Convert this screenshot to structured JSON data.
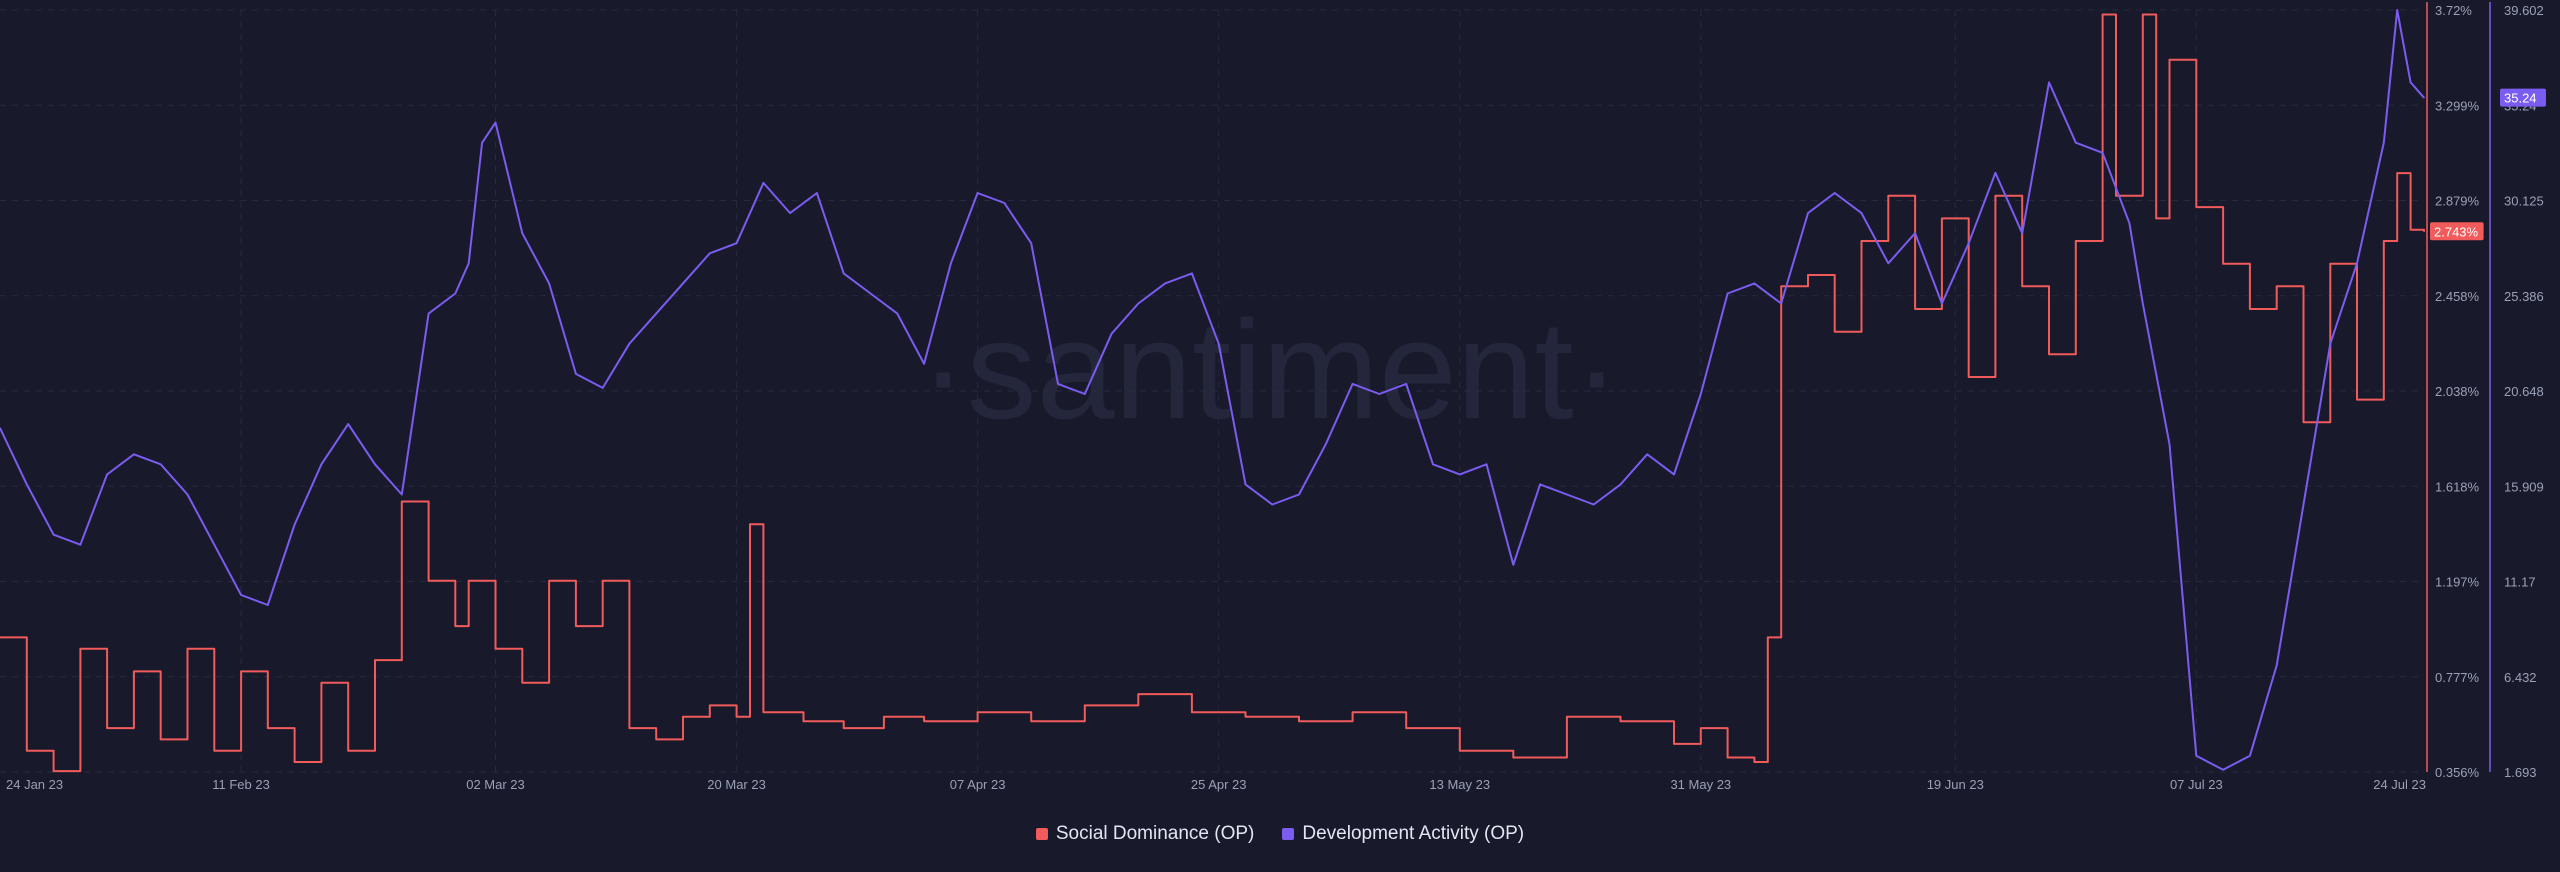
{
  "watermark": "·santiment·",
  "colors": {
    "background": "#181a2b",
    "grid": "#262a3f",
    "axis_text": "#9aa0b6",
    "social_dominance": "#f15b5b",
    "development_activity": "#7b5cf0"
  },
  "legend": [
    {
      "label": "Social Dominance (OP)",
      "color": "#f15b5b"
    },
    {
      "label": "Development Activity (OP)",
      "color": "#7b5cf0"
    }
  ],
  "chart_data": {
    "type": "line",
    "x_tick_labels": [
      "24 Jan 23",
      "11 Feb 23",
      "02 Mar 23",
      "20 Mar 23",
      "07 Apr 23",
      "25 Apr 23",
      "13 May 23",
      "31 May 23",
      "19 Jun 23",
      "07 Jul 23",
      "24 Jul 23"
    ],
    "x_range": [
      "24 Jan 23",
      "24 Jul 23"
    ],
    "grid": true,
    "legend_position": "bottom-center",
    "y_axes": [
      {
        "series": "Social Dominance (OP)",
        "position": "right-inner",
        "unit": "%",
        "ticks": [
          "3.72%",
          "3.299%",
          "2.879%",
          "2.458%",
          "2.038%",
          "1.618%",
          "1.197%",
          "0.777%",
          "0.356%"
        ],
        "range": [
          0.356,
          3.72
        ],
        "last_value_label": "2.743%"
      },
      {
        "series": "Development Activity (OP)",
        "position": "right-outer",
        "ticks": [
          "39.602",
          "35.24",
          "30.125",
          "25.386",
          "20.648",
          "15.909",
          "11.17",
          "6.432",
          "1.693"
        ],
        "range": [
          1.693,
          39.602
        ],
        "last_value_label": "35.24"
      }
    ],
    "series": [
      {
        "name": "Social Dominance (OP)",
        "axis": 0,
        "points": [
          [
            "24 Jan 23",
            0.95
          ],
          [
            "26 Jan 23",
            0.45
          ],
          [
            "28 Jan 23",
            0.36
          ],
          [
            "30 Jan 23",
            0.9
          ],
          [
            "01 Feb 23",
            0.55
          ],
          [
            "03 Feb 23",
            0.8
          ],
          [
            "05 Feb 23",
            0.5
          ],
          [
            "07 Feb 23",
            0.9
          ],
          [
            "09 Feb 23",
            0.45
          ],
          [
            "11 Feb 23",
            0.8
          ],
          [
            "13 Feb 23",
            0.55
          ],
          [
            "15 Feb 23",
            0.4
          ],
          [
            "17 Feb 23",
            0.75
          ],
          [
            "19 Feb 23",
            0.45
          ],
          [
            "21 Feb 23",
            0.85
          ],
          [
            "23 Feb 23",
            1.55
          ],
          [
            "25 Feb 23",
            1.2
          ],
          [
            "27 Feb 23",
            1.0
          ],
          [
            "28 Feb 23",
            1.2
          ],
          [
            "02 Mar 23",
            0.9
          ],
          [
            "04 Mar 23",
            0.75
          ],
          [
            "06 Mar 23",
            1.2
          ],
          [
            "08 Mar 23",
            1.0
          ],
          [
            "10 Mar 23",
            1.2
          ],
          [
            "12 Mar 23",
            0.55
          ],
          [
            "14 Mar 23",
            0.5
          ],
          [
            "16 Mar 23",
            0.6
          ],
          [
            "18 Mar 23",
            0.65
          ],
          [
            "20 Mar 23",
            0.6
          ],
          [
            "21 Mar 23",
            1.45
          ],
          [
            "22 Mar 23",
            0.62
          ],
          [
            "25 Mar 23",
            0.58
          ],
          [
            "28 Mar 23",
            0.55
          ],
          [
            "31 Mar 23",
            0.6
          ],
          [
            "03 Apr 23",
            0.58
          ],
          [
            "07 Apr 23",
            0.62
          ],
          [
            "11 Apr 23",
            0.58
          ],
          [
            "15 Apr 23",
            0.65
          ],
          [
            "19 Apr 23",
            0.7
          ],
          [
            "23 Apr 23",
            0.62
          ],
          [
            "27 Apr 23",
            0.6
          ],
          [
            "01 May 23",
            0.58
          ],
          [
            "05 May 23",
            0.62
          ],
          [
            "09 May 23",
            0.55
          ],
          [
            "13 May 23",
            0.45
          ],
          [
            "17 May 23",
            0.42
          ],
          [
            "21 May 23",
            0.6
          ],
          [
            "25 May 23",
            0.58
          ],
          [
            "29 May 23",
            0.48
          ],
          [
            "31 May 23",
            0.55
          ],
          [
            "02 Jun 23",
            0.42
          ],
          [
            "04 Jun 23",
            0.4
          ],
          [
            "05 Jun 23",
            0.95
          ],
          [
            "06 Jun 23",
            2.5
          ],
          [
            "08 Jun 23",
            2.55
          ],
          [
            "10 Jun 23",
            2.3
          ],
          [
            "12 Jun 23",
            2.7
          ],
          [
            "14 Jun 23",
            2.9
          ],
          [
            "16 Jun 23",
            2.4
          ],
          [
            "18 Jun 23",
            2.8
          ],
          [
            "20 Jun 23",
            2.1
          ],
          [
            "22 Jun 23",
            2.9
          ],
          [
            "24 Jun 23",
            2.5
          ],
          [
            "26 Jun 23",
            2.2
          ],
          [
            "28 Jun 23",
            2.7
          ],
          [
            "30 Jun 23",
            3.7
          ],
          [
            "01 Jul 23",
            2.9
          ],
          [
            "03 Jul 23",
            3.7
          ],
          [
            "04 Jul 23",
            2.8
          ],
          [
            "05 Jul 23",
            3.5
          ],
          [
            "07 Jul 23",
            2.85
          ],
          [
            "09 Jul 23",
            2.6
          ],
          [
            "11 Jul 23",
            2.4
          ],
          [
            "13 Jul 23",
            2.5
          ],
          [
            "15 Jul 23",
            1.9
          ],
          [
            "17 Jul 23",
            2.6
          ],
          [
            "19 Jul 23",
            2.0
          ],
          [
            "21 Jul 23",
            2.7
          ],
          [
            "22 Jul 23",
            3.0
          ],
          [
            "23 Jul 23",
            2.75
          ],
          [
            "24 Jul 23",
            2.743
          ]
        ]
      },
      {
        "name": "Development Activity (OP)",
        "axis": 1,
        "points": [
          [
            "24 Jan 23",
            18.8
          ],
          [
            "26 Jan 23",
            16.0
          ],
          [
            "28 Jan 23",
            13.5
          ],
          [
            "30 Jan 23",
            13.0
          ],
          [
            "01 Feb 23",
            16.5
          ],
          [
            "03 Feb 23",
            17.5
          ],
          [
            "05 Feb 23",
            17.0
          ],
          [
            "07 Feb 23",
            15.5
          ],
          [
            "09 Feb 23",
            13.0
          ],
          [
            "11 Feb 23",
            10.5
          ],
          [
            "13 Feb 23",
            10.0
          ],
          [
            "15 Feb 23",
            14.0
          ],
          [
            "17 Feb 23",
            17.0
          ],
          [
            "19 Feb 23",
            19.0
          ],
          [
            "21 Feb 23",
            17.0
          ],
          [
            "23 Feb 23",
            15.5
          ],
          [
            "25 Feb 23",
            24.5
          ],
          [
            "27 Feb 23",
            25.5
          ],
          [
            "28 Feb 23",
            27.0
          ],
          [
            "01 Mar 23",
            33.0
          ],
          [
            "02 Mar 23",
            34.0
          ],
          [
            "04 Mar 23",
            28.5
          ],
          [
            "06 Mar 23",
            26.0
          ],
          [
            "08 Mar 23",
            21.5
          ],
          [
            "10 Mar 23",
            20.8
          ],
          [
            "12 Mar 23",
            23.0
          ],
          [
            "14 Mar 23",
            24.5
          ],
          [
            "16 Mar 23",
            26.0
          ],
          [
            "18 Mar 23",
            27.5
          ],
          [
            "20 Mar 23",
            28.0
          ],
          [
            "22 Mar 23",
            31.0
          ],
          [
            "24 Mar 23",
            29.5
          ],
          [
            "26 Mar 23",
            30.5
          ],
          [
            "28 Mar 23",
            26.5
          ],
          [
            "30 Mar 23",
            25.5
          ],
          [
            "01 Apr 23",
            24.5
          ],
          [
            "03 Apr 23",
            22.0
          ],
          [
            "05 Apr 23",
            27.0
          ],
          [
            "07 Apr 23",
            30.5
          ],
          [
            "09 Apr 23",
            30.0
          ],
          [
            "11 Apr 23",
            28.0
          ],
          [
            "13 Apr 23",
            21.0
          ],
          [
            "15 Apr 23",
            20.5
          ],
          [
            "17 Apr 23",
            23.5
          ],
          [
            "19 Apr 23",
            25.0
          ],
          [
            "21 Apr 23",
            26.0
          ],
          [
            "23 Apr 23",
            26.5
          ],
          [
            "25 Apr 23",
            23.0
          ],
          [
            "27 Apr 23",
            16.0
          ],
          [
            "29 Apr 23",
            15.0
          ],
          [
            "01 May 23",
            15.5
          ],
          [
            "03 May 23",
            18.0
          ],
          [
            "05 May 23",
            21.0
          ],
          [
            "07 May 23",
            20.5
          ],
          [
            "09 May 23",
            21.0
          ],
          [
            "11 May 23",
            17.0
          ],
          [
            "13 May 23",
            16.5
          ],
          [
            "15 May 23",
            17.0
          ],
          [
            "17 May 23",
            12.0
          ],
          [
            "19 May 23",
            16.0
          ],
          [
            "21 May 23",
            15.5
          ],
          [
            "23 May 23",
            15.0
          ],
          [
            "25 May 23",
            16.0
          ],
          [
            "27 May 23",
            17.5
          ],
          [
            "29 May 23",
            16.5
          ],
          [
            "31 May 23",
            20.5
          ],
          [
            "02 Jun 23",
            25.5
          ],
          [
            "04 Jun 23",
            26.0
          ],
          [
            "06 Jun 23",
            25.0
          ],
          [
            "08 Jun 23",
            29.5
          ],
          [
            "10 Jun 23",
            30.5
          ],
          [
            "12 Jun 23",
            29.5
          ],
          [
            "14 Jun 23",
            27.0
          ],
          [
            "16 Jun 23",
            28.5
          ],
          [
            "18 Jun 23",
            25.0
          ],
          [
            "20 Jun 23",
            28.0
          ],
          [
            "22 Jun 23",
            31.5
          ],
          [
            "24 Jun 23",
            28.5
          ],
          [
            "26 Jun 23",
            36.0
          ],
          [
            "28 Jun 23",
            33.0
          ],
          [
            "30 Jun 23",
            32.5
          ],
          [
            "02 Jul 23",
            29.0
          ],
          [
            "03 Jul 23",
            25.0
          ],
          [
            "05 Jul 23",
            18.0
          ],
          [
            "07 Jul 23",
            2.5
          ],
          [
            "09 Jul 23",
            1.8
          ],
          [
            "11 Jul 23",
            2.5
          ],
          [
            "13 Jul 23",
            7.0
          ],
          [
            "15 Jul 23",
            15.0
          ],
          [
            "17 Jul 23",
            23.0
          ],
          [
            "19 Jul 23",
            27.0
          ],
          [
            "21 Jul 23",
            33.0
          ],
          [
            "22 Jul 23",
            39.6
          ],
          [
            "23 Jul 23",
            36.0
          ],
          [
            "24 Jul 23",
            35.24
          ]
        ]
      }
    ]
  }
}
